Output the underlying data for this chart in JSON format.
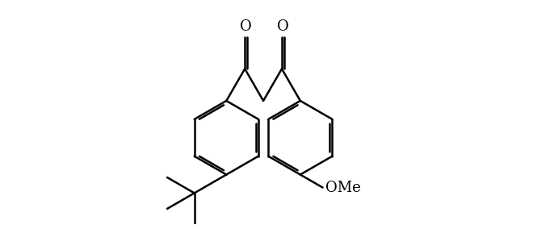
{
  "background_color": "#ffffff",
  "line_color": "#000000",
  "line_width": 1.8,
  "figsize": [
    6.86,
    2.79
  ],
  "dpi": 100,
  "font_size": 13,
  "label_O1": "O",
  "label_O2": "O",
  "label_OMe": "OMe"
}
